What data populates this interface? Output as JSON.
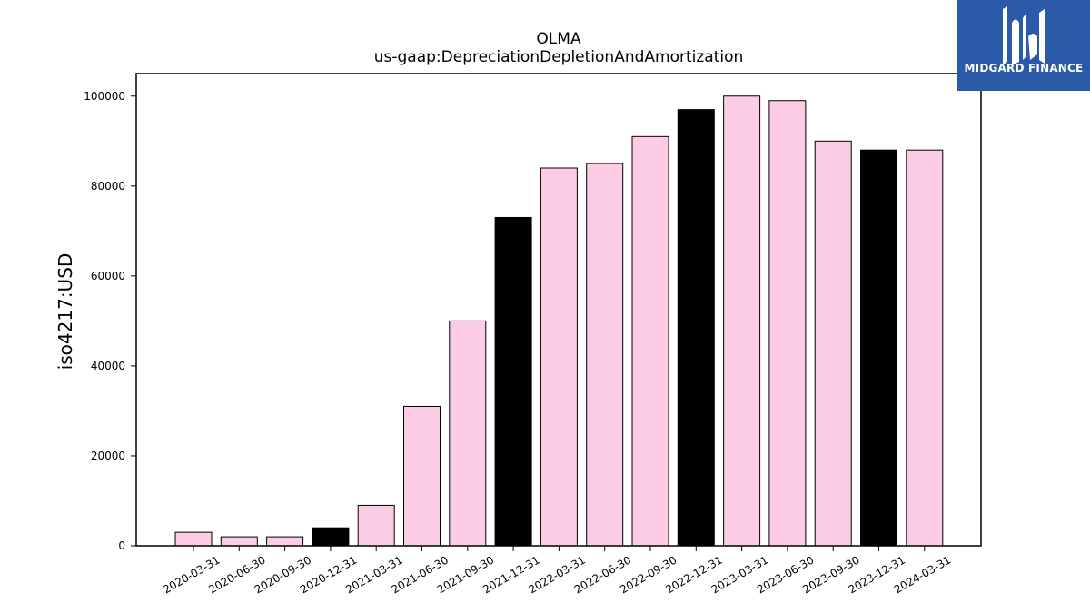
{
  "logo": {
    "text": "MIDGARD FINANCE",
    "background": "#2b5aa8"
  },
  "chart_data": {
    "type": "bar",
    "title": "OLMA",
    "subtitle": "us-gaap:DepreciationDepletionAndAmortization",
    "xlabel": "",
    "ylabel": "iso4217:USD",
    "ylim": [
      0,
      105000
    ],
    "yticks": [
      0,
      20000,
      40000,
      60000,
      80000,
      100000
    ],
    "grid": false,
    "categories": [
      "2020-03-31",
      "2020-06-30",
      "2020-09-30",
      "2020-12-31",
      "2021-03-31",
      "2021-06-30",
      "2021-09-30",
      "2021-12-31",
      "2022-03-31",
      "2022-06-30",
      "2022-09-30",
      "2022-12-31",
      "2023-03-31",
      "2023-06-30",
      "2023-09-30",
      "2023-12-31",
      "2024-03-31"
    ],
    "values": [
      3000,
      2000,
      2000,
      4000,
      9000,
      31000,
      50000,
      73000,
      84000,
      85000,
      91000,
      97000,
      100000,
      99000,
      90000,
      88000,
      88000
    ],
    "colors": {
      "quarter": "#fccbe6",
      "year_end": "#000000",
      "edge": "#000000"
    }
  }
}
